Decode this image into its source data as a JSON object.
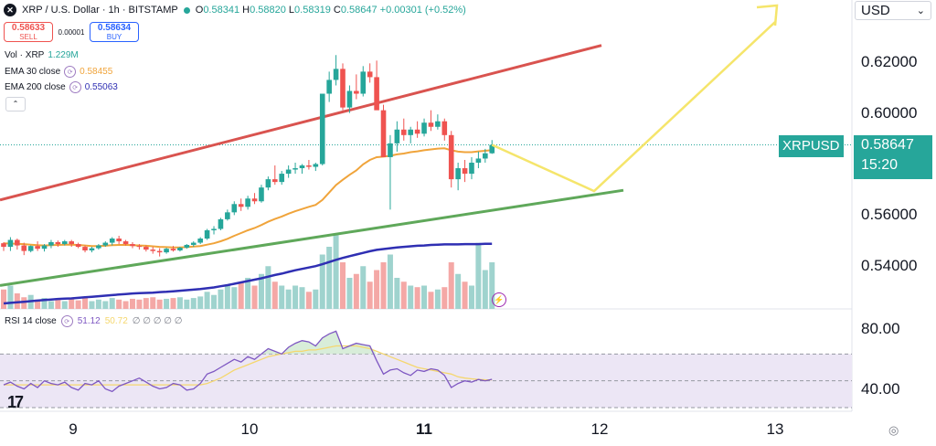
{
  "header": {
    "symbol_title": "XRP / U.S. Dollar · 1h · BITSTAMP",
    "open_label": "O",
    "open": "0.58341",
    "high_label": "H",
    "high": "0.58820",
    "low_label": "L",
    "low": "0.58319",
    "close_label": "C",
    "close": "0.58647",
    "change": "+0.00301 (+0.52%)",
    "logo_glyph": "✕"
  },
  "trade": {
    "sell_price": "0.58633",
    "sell_label": "SELL",
    "spread": "0.00001",
    "buy_price": "0.58634",
    "buy_label": "BUY"
  },
  "indicators": {
    "vol_label": "Vol · XRP",
    "vol_value": "1.229M",
    "ema30_label": "EMA 30 close",
    "ema30_value": "0.58455",
    "ema200_label": "EMA 200 close",
    "ema200_value": "0.55063",
    "collapse_glyph": "⌃"
  },
  "rsi": {
    "label": "RSI 14 close",
    "value": "51.12",
    "ma_value": "50.72",
    "extras": "∅ ∅ ∅ ∅ ∅"
  },
  "currency_selector": {
    "value": "USD",
    "chevron": "⌄"
  },
  "price_axis": [
    "0.62000",
    "0.60000",
    "0.56000",
    "0.54000"
  ],
  "rsi_axis": [
    "80.00",
    "40.00"
  ],
  "last_price": {
    "symbol": "XRPUSD",
    "price": "0.58647",
    "countdown": "15:20"
  },
  "time_axis": [
    {
      "label": "9",
      "bold": false
    },
    {
      "label": "10",
      "bold": false
    },
    {
      "label": "11",
      "bold": true
    },
    {
      "label": "12",
      "bold": false
    },
    {
      "label": "13",
      "bold": false
    }
  ],
  "tv_logo": "17",
  "settings_glyph": "◎",
  "alert_glyph": "⚡",
  "colors": {
    "up": "#26a69a",
    "down": "#ef5350",
    "ema30": "#f0a43b",
    "ema200": "#2f2fb3",
    "upper_channel": "#d9534f",
    "lower_channel": "#5fa85a",
    "projection": "#f5e56b",
    "rsi": "#7e57c2",
    "rsi_ma": "#f5d76e",
    "rsi_band": "#ece6f5"
  },
  "chart_data": {
    "type": "candlestick",
    "symbol": "XRP / U.S. Dollar",
    "interval": "1h",
    "y_range": [
      0.527,
      0.633
    ],
    "price_candles": [
      [
        0.5508,
        0.5512,
        0.548,
        0.5495
      ],
      [
        0.5495,
        0.553,
        0.548,
        0.552
      ],
      [
        0.552,
        0.5525,
        0.5485,
        0.55
      ],
      [
        0.55,
        0.551,
        0.5465,
        0.548
      ],
      [
        0.548,
        0.55,
        0.5475,
        0.5498
      ],
      [
        0.5498,
        0.5515,
        0.548,
        0.5488
      ],
      [
        0.5488,
        0.5505,
        0.5478,
        0.55
      ],
      [
        0.55,
        0.552,
        0.549,
        0.5512
      ],
      [
        0.5512,
        0.5518,
        0.5495,
        0.5505
      ],
      [
        0.5505,
        0.552,
        0.55,
        0.5515
      ],
      [
        0.5515,
        0.552,
        0.5495,
        0.5505
      ],
      [
        0.5505,
        0.551,
        0.549,
        0.5495
      ],
      [
        0.5495,
        0.55,
        0.5475,
        0.5482
      ],
      [
        0.5482,
        0.5495,
        0.5475,
        0.549
      ],
      [
        0.549,
        0.5505,
        0.5485,
        0.55
      ],
      [
        0.55,
        0.5515,
        0.5495,
        0.551
      ],
      [
        0.551,
        0.553,
        0.55,
        0.5525
      ],
      [
        0.5525,
        0.5535,
        0.5505,
        0.5515
      ],
      [
        0.5515,
        0.552,
        0.55,
        0.5505
      ],
      [
        0.5505,
        0.5512,
        0.549,
        0.5498
      ],
      [
        0.5498,
        0.5505,
        0.5485,
        0.5495
      ],
      [
        0.5495,
        0.55,
        0.5478,
        0.5485
      ],
      [
        0.5485,
        0.5495,
        0.547,
        0.548
      ],
      [
        0.548,
        0.549,
        0.546,
        0.5475
      ],
      [
        0.5475,
        0.5492,
        0.547,
        0.5488
      ],
      [
        0.5488,
        0.5498,
        0.5478,
        0.5482
      ],
      [
        0.5482,
        0.5495,
        0.5478,
        0.5492
      ],
      [
        0.5492,
        0.5505,
        0.5488,
        0.5502
      ],
      [
        0.5502,
        0.5515,
        0.5495,
        0.551
      ],
      [
        0.551,
        0.553,
        0.5505,
        0.5525
      ],
      [
        0.5525,
        0.556,
        0.552,
        0.5555
      ],
      [
        0.5555,
        0.557,
        0.554,
        0.556
      ],
      [
        0.556,
        0.56,
        0.5555,
        0.5595
      ],
      [
        0.5595,
        0.563,
        0.559,
        0.562
      ],
      [
        0.562,
        0.566,
        0.561,
        0.565
      ],
      [
        0.565,
        0.567,
        0.5625,
        0.564
      ],
      [
        0.564,
        0.568,
        0.563,
        0.567
      ],
      [
        0.567,
        0.569,
        0.565,
        0.566
      ],
      [
        0.566,
        0.572,
        0.5655,
        0.571
      ],
      [
        0.571,
        0.575,
        0.57,
        0.574
      ],
      [
        0.574,
        0.579,
        0.572,
        0.573
      ],
      [
        0.573,
        0.577,
        0.572,
        0.576
      ],
      [
        0.576,
        0.579,
        0.5745,
        0.5775
      ],
      [
        0.5775,
        0.58,
        0.576,
        0.578
      ],
      [
        0.578,
        0.5795,
        0.576,
        0.579
      ],
      [
        0.579,
        0.581,
        0.5775,
        0.5785
      ],
      [
        0.5785,
        0.58,
        0.577,
        0.5795
      ],
      [
        0.5795,
        0.597,
        0.579,
        0.605
      ],
      [
        0.605,
        0.613,
        0.602,
        0.61
      ],
      [
        0.61,
        0.619,
        0.608,
        0.614
      ],
      [
        0.614,
        0.616,
        0.599,
        0.6
      ],
      [
        0.6,
        0.608,
        0.598,
        0.606
      ],
      [
        0.606,
        0.612,
        0.603,
        0.605
      ],
      [
        0.605,
        0.615,
        0.604,
        0.613
      ],
      [
        0.613,
        0.616,
        0.609,
        0.611
      ],
      [
        0.611,
        0.617,
        0.605,
        0.599
      ],
      [
        0.599,
        0.601,
        0.593,
        0.582
      ],
      [
        0.582,
        0.59,
        0.563,
        0.587
      ],
      [
        0.587,
        0.595,
        0.584,
        0.592
      ],
      [
        0.592,
        0.596,
        0.588,
        0.59
      ],
      [
        0.59,
        0.593,
        0.587,
        0.592
      ],
      [
        0.592,
        0.595,
        0.589,
        0.5905
      ],
      [
        0.5905,
        0.596,
        0.5895,
        0.5945
      ],
      [
        0.5945,
        0.599,
        0.5915,
        0.593
      ],
      [
        0.593,
        0.5975,
        0.592,
        0.595
      ],
      [
        0.595,
        0.596,
        0.588,
        0.59
      ],
      [
        0.59,
        0.5915,
        0.571,
        0.574
      ],
      [
        0.574,
        0.58,
        0.57,
        0.578
      ],
      [
        0.578,
        0.581,
        0.573,
        0.576
      ],
      [
        0.576,
        0.582,
        0.574,
        0.58
      ],
      [
        0.58,
        0.584,
        0.578,
        0.5815
      ],
      [
        0.5815,
        0.585,
        0.58,
        0.5834
      ],
      [
        0.58341,
        0.5882,
        0.58319,
        0.58647
      ]
    ],
    "ema30": [
      0.5508,
      0.5507,
      0.5506,
      0.5505,
      0.5503,
      0.5501,
      0.55,
      0.5501,
      0.5502,
      0.5503,
      0.5503,
      0.5502,
      0.55,
      0.5498,
      0.5498,
      0.5499,
      0.5501,
      0.5502,
      0.5502,
      0.5501,
      0.55,
      0.5499,
      0.5497,
      0.5495,
      0.5494,
      0.5493,
      0.5493,
      0.5494,
      0.5496,
      0.5498,
      0.5503,
      0.5508,
      0.5515,
      0.5524,
      0.5535,
      0.5545,
      0.5555,
      0.5563,
      0.5574,
      0.5586,
      0.5596,
      0.5605,
      0.5615,
      0.5624,
      0.5632,
      0.564,
      0.5647,
      0.5665,
      0.5692,
      0.5719,
      0.5738,
      0.5756,
      0.5772,
      0.5794,
      0.581,
      0.582,
      0.5822,
      0.5825,
      0.583,
      0.5833,
      0.5838,
      0.5841,
      0.5845,
      0.5848,
      0.5851,
      0.5852,
      0.5845,
      0.584,
      0.5838,
      0.5838,
      0.5841,
      0.5843,
      0.58455
    ],
    "ema200": [
      0.529,
      0.5292,
      0.5294,
      0.5296,
      0.5298,
      0.53,
      0.5302,
      0.5304,
      0.5306,
      0.5307,
      0.5308,
      0.531,
      0.5312,
      0.5314,
      0.5316,
      0.5318,
      0.532,
      0.5322,
      0.5324,
      0.5326,
      0.5327,
      0.5328,
      0.5329,
      0.5331,
      0.5332,
      0.5334,
      0.5336,
      0.5338,
      0.534,
      0.5342,
      0.5345,
      0.5348,
      0.5352,
      0.5356,
      0.5361,
      0.5366,
      0.5371,
      0.5376,
      0.5381,
      0.5387,
      0.5393,
      0.5398,
      0.5404,
      0.541,
      0.5415,
      0.542,
      0.5425,
      0.5432,
      0.544,
      0.5448,
      0.5455,
      0.5461,
      0.5467,
      0.5473,
      0.5479,
      0.5484,
      0.5487,
      0.549,
      0.5493,
      0.5495,
      0.5497,
      0.5499,
      0.55,
      0.5502,
      0.5503,
      0.5504,
      0.5504,
      0.5504,
      0.5505,
      0.5505,
      0.5505,
      0.5506,
      0.55063
    ],
    "volume_rel": [
      0.25,
      0.3,
      0.2,
      0.15,
      0.18,
      0.12,
      0.14,
      0.1,
      0.12,
      0.1,
      0.13,
      0.11,
      0.15,
      0.1,
      0.12,
      0.1,
      0.14,
      0.12,
      0.1,
      0.13,
      0.12,
      0.14,
      0.15,
      0.12,
      0.13,
      0.14,
      0.15,
      0.12,
      0.14,
      0.16,
      0.22,
      0.18,
      0.25,
      0.3,
      0.28,
      0.35,
      0.4,
      0.3,
      0.45,
      0.55,
      0.35,
      0.3,
      0.25,
      0.3,
      0.28,
      0.22,
      0.25,
      0.7,
      0.8,
      0.95,
      0.6,
      0.4,
      0.45,
      0.55,
      0.35,
      0.5,
      0.6,
      0.7,
      0.4,
      0.35,
      0.3,
      0.28,
      0.3,
      0.22,
      0.25,
      0.28,
      0.6,
      0.45,
      0.35,
      0.3,
      0.85,
      0.5,
      0.6
    ],
    "rsi_range": [
      30,
      90
    ],
    "rsi_levels": [
      70,
      50,
      30
    ],
    "rsi": [
      47,
      49,
      46,
      44,
      48,
      45,
      50,
      48,
      47,
      49,
      45,
      43,
      48,
      47,
      50,
      44,
      42,
      46,
      48,
      50,
      52,
      49,
      46,
      44,
      45,
      48,
      47,
      43,
      44,
      48,
      55,
      57,
      60,
      63,
      66,
      64,
      68,
      66,
      70,
      74,
      72,
      70,
      75,
      78,
      80,
      79,
      76,
      82,
      85,
      87,
      74,
      76,
      78,
      77,
      76,
      65,
      55,
      58,
      59,
      56,
      54,
      58,
      57,
      59,
      58,
      54,
      45,
      48,
      50,
      49,
      51,
      50,
      51.12
    ],
    "rsi_ma": [
      47,
      47,
      47,
      47,
      47,
      47,
      47,
      47,
      47,
      47,
      47,
      47,
      47,
      47,
      47,
      47,
      47,
      47,
      47,
      47,
      47,
      47,
      47,
      47,
      47,
      47,
      47,
      47,
      47,
      47,
      48,
      50,
      52,
      55,
      58,
      60,
      62,
      64,
      66,
      68,
      69,
      70,
      71,
      72,
      72,
      73,
      73,
      74,
      75,
      76,
      76,
      76,
      76,
      75,
      74,
      72,
      70,
      68,
      66,
      64,
      62,
      60,
      59,
      58,
      57,
      56,
      55,
      53,
      52,
      51.5,
      51,
      50.8,
      50.72
    ]
  }
}
